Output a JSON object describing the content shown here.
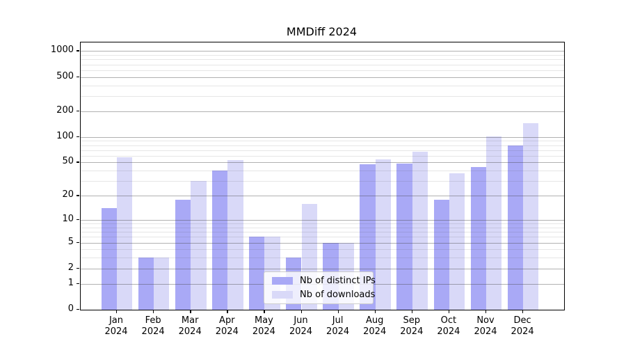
{
  "title": "MMDiff 2024",
  "chart_data": {
    "type": "bar",
    "title": "MMDiff 2024",
    "categories": [
      "Jan 2024",
      "Feb 2024",
      "Mar 2024",
      "Apr 2024",
      "May 2024",
      "Jun 2024",
      "Jul 2024",
      "Aug 2024",
      "Sep 2024",
      "Oct 2024",
      "Nov 2024",
      "Dec 2024"
    ],
    "series": [
      {
        "name": "Nb of distinct IPs",
        "color": "#a9a9f6",
        "values": [
          14,
          3,
          18,
          40,
          6,
          3,
          5,
          48,
          49,
          18,
          44,
          79
        ]
      },
      {
        "name": "Nb of downloads",
        "color": "#d9d9f8",
        "values": [
          58,
          3,
          30,
          53,
          6,
          16,
          5,
          54,
          67,
          37,
          102,
          145
        ]
      }
    ],
    "yscale": "log1p",
    "ylim": [
      0,
      1258
    ],
    "yticks": [
      0,
      1,
      2,
      5,
      10,
      20,
      50,
      100,
      200,
      500,
      1000
    ],
    "minor_gridlines": [
      3,
      4,
      6,
      7,
      8,
      9,
      30,
      40,
      60,
      70,
      80,
      90,
      300,
      400,
      600,
      700,
      800,
      900
    ],
    "grid": true,
    "legend_position": "lower center"
  }
}
